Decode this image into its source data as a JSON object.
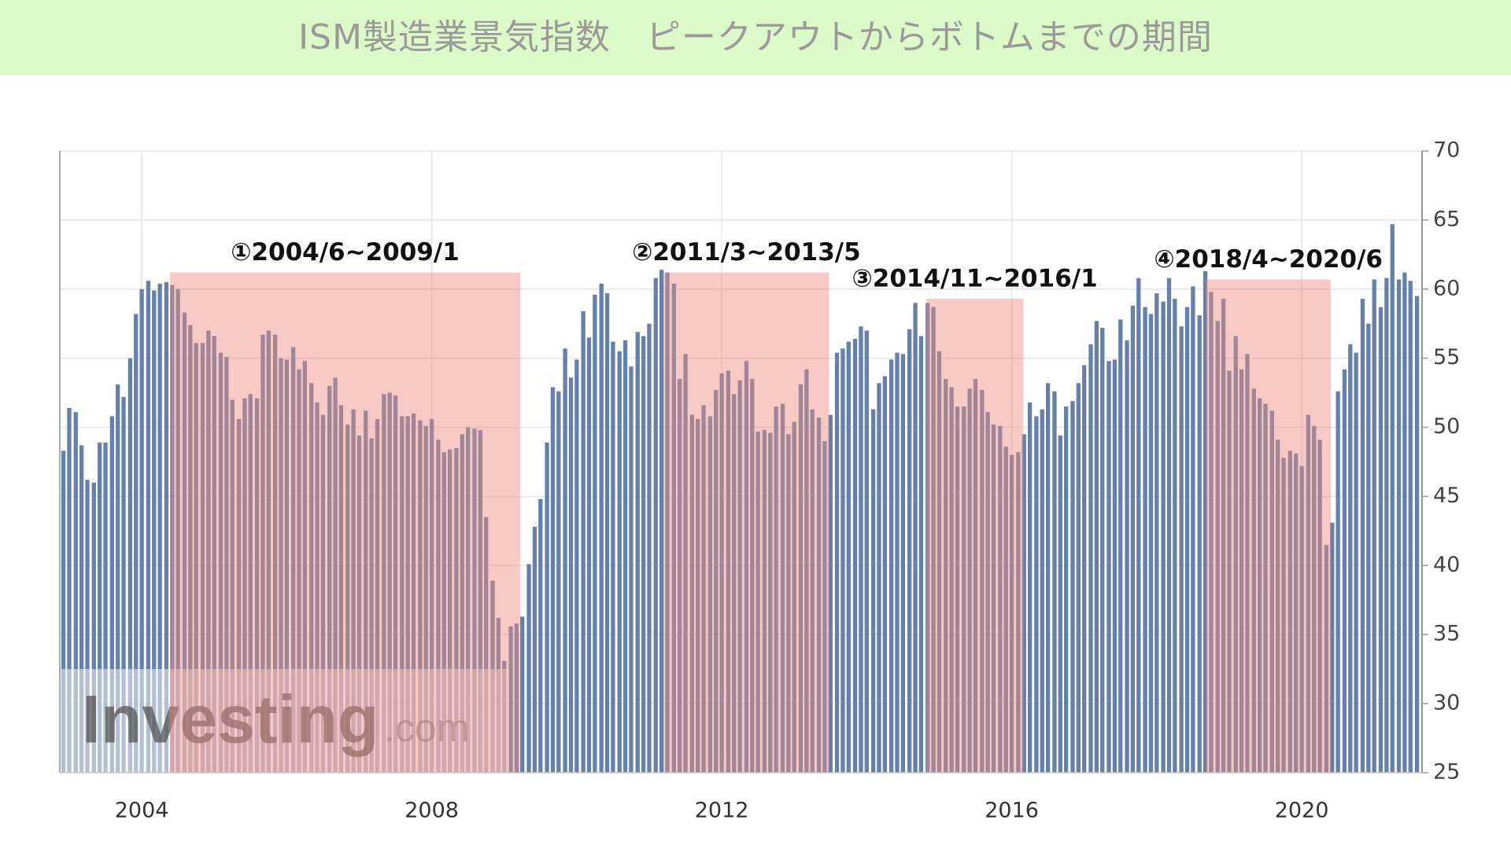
{
  "chart_data": {
    "type": "bar",
    "title": "ISM製造業景気指数　ピークアウトからボトムまでの期間",
    "x": [
      2002.92,
      2003.0,
      2003.09,
      2003.17,
      2003.25,
      2003.34,
      2003.42,
      2003.5,
      2003.59,
      2003.67,
      2003.75,
      2003.84,
      2003.92,
      2004.0,
      2004.09,
      2004.17,
      2004.25,
      2004.34,
      2004.42,
      2004.5,
      2004.59,
      2004.67,
      2004.75,
      2004.84,
      2004.92,
      2005.0,
      2005.09,
      2005.17,
      2005.25,
      2005.34,
      2005.42,
      2005.5,
      2005.59,
      2005.67,
      2005.75,
      2005.84,
      2005.92,
      2006.0,
      2006.09,
      2006.17,
      2006.25,
      2006.34,
      2006.42,
      2006.5,
      2006.59,
      2006.67,
      2006.75,
      2006.84,
      2006.92,
      2007.0,
      2007.09,
      2007.17,
      2007.25,
      2007.34,
      2007.42,
      2007.5,
      2007.59,
      2007.67,
      2007.75,
      2007.84,
      2007.92,
      2008.0,
      2008.09,
      2008.17,
      2008.25,
      2008.34,
      2008.42,
      2008.5,
      2008.59,
      2008.67,
      2008.75,
      2008.84,
      2008.92,
      2009.0,
      2009.09,
      2009.17,
      2009.25,
      2009.34,
      2009.42,
      2009.5,
      2009.59,
      2009.67,
      2009.75,
      2009.84,
      2009.92,
      2010.0,
      2010.09,
      2010.17,
      2010.25,
      2010.34,
      2010.42,
      2010.5,
      2010.59,
      2010.67,
      2010.75,
      2010.84,
      2010.92,
      2011.0,
      2011.09,
      2011.17,
      2011.25,
      2011.34,
      2011.42,
      2011.5,
      2011.59,
      2011.67,
      2011.75,
      2011.84,
      2011.92,
      2012.0,
      2012.09,
      2012.17,
      2012.25,
      2012.34,
      2012.42,
      2012.5,
      2012.59,
      2012.67,
      2012.75,
      2012.84,
      2012.92,
      2013.0,
      2013.09,
      2013.17,
      2013.25,
      2013.34,
      2013.42,
      2013.5,
      2013.59,
      2013.67,
      2013.75,
      2013.84,
      2013.92,
      2014.0,
      2014.09,
      2014.17,
      2014.25,
      2014.34,
      2014.42,
      2014.5,
      2014.59,
      2014.67,
      2014.75,
      2014.84,
      2014.92,
      2015.0,
      2015.09,
      2015.17,
      2015.25,
      2015.34,
      2015.42,
      2015.5,
      2015.59,
      2015.67,
      2015.75,
      2015.84,
      2015.92,
      2016.0,
      2016.09,
      2016.17,
      2016.25,
      2016.34,
      2016.42,
      2016.5,
      2016.59,
      2016.67,
      2016.75,
      2016.84,
      2016.92,
      2017.0,
      2017.09,
      2017.17,
      2017.25,
      2017.34,
      2017.42,
      2017.5,
      2017.59,
      2017.67,
      2017.75,
      2017.84,
      2017.92,
      2018.0,
      2018.09,
      2018.17,
      2018.25,
      2018.34,
      2018.42,
      2018.5,
      2018.59,
      2018.67,
      2018.75,
      2018.84,
      2018.92,
      2019.0,
      2019.09,
      2019.17,
      2019.25,
      2019.34,
      2019.42,
      2019.5,
      2019.59,
      2019.67,
      2019.75,
      2019.84,
      2019.92,
      2020.0,
      2020.09,
      2020.17,
      2020.25,
      2020.34,
      2020.42,
      2020.5,
      2020.59,
      2020.67,
      2020.75,
      2020.84,
      2020.92,
      2021.0,
      2021.09,
      2021.17,
      2021.25,
      2021.34,
      2021.42,
      2021.5,
      2021.59
    ],
    "values": [
      48.3,
      51.4,
      51.1,
      48.7,
      46.2,
      46.0,
      48.9,
      48.9,
      50.8,
      53.1,
      52.2,
      55.0,
      58.2,
      60.0,
      60.6,
      59.9,
      60.4,
      60.5,
      60.3,
      60.0,
      58.3,
      57.4,
      56.1,
      56.1,
      57.0,
      56.6,
      55.4,
      55.1,
      52.0,
      50.6,
      52.1,
      52.4,
      52.1,
      56.7,
      57.0,
      56.7,
      55.0,
      54.9,
      55.8,
      54.2,
      54.8,
      53.2,
      51.8,
      50.9,
      53.0,
      53.6,
      51.6,
      50.2,
      51.3,
      49.4,
      51.2,
      49.2,
      50.6,
      52.4,
      52.5,
      52.3,
      50.8,
      50.8,
      51.0,
      50.5,
      50.1,
      50.6,
      49.1,
      48.2,
      48.4,
      48.5,
      49.5,
      50.0,
      49.9,
      49.8,
      43.5,
      38.9,
      36.2,
      33.1,
      35.6,
      35.8,
      36.3,
      40.1,
      42.8,
      44.8,
      48.9,
      52.9,
      52.6,
      55.7,
      53.6,
      54.9,
      58.4,
      56.5,
      59.6,
      60.4,
      59.7,
      56.2,
      55.5,
      56.3,
      54.4,
      56.9,
      56.6,
      57.5,
      60.8,
      61.4,
      61.2,
      60.4,
      53.5,
      55.3,
      50.9,
      50.6,
      51.6,
      50.8,
      52.7,
      53.9,
      54.1,
      52.4,
      53.4,
      54.8,
      53.5,
      49.7,
      49.8,
      49.6,
      51.5,
      51.7,
      49.5,
      50.4,
      53.1,
      54.2,
      51.3,
      50.7,
      49.0,
      50.9,
      55.4,
      55.7,
      56.2,
      56.4,
      57.3,
      57.0,
      51.3,
      53.2,
      53.7,
      54.9,
      55.4,
      55.3,
      57.1,
      59.0,
      56.6,
      59.0,
      58.7,
      55.5,
      53.5,
      52.9,
      51.5,
      51.5,
      52.8,
      53.5,
      52.7,
      51.1,
      50.2,
      50.1,
      48.6,
      48.0,
      48.2,
      49.5,
      51.8,
      50.8,
      51.3,
      53.2,
      52.6,
      49.4,
      51.5,
      51.9,
      53.2,
      54.5,
      56.0,
      57.7,
      57.2,
      54.8,
      54.9,
      57.8,
      56.3,
      58.8,
      60.8,
      58.7,
      58.2,
      59.7,
      59.1,
      60.8,
      59.3,
      57.3,
      58.7,
      60.2,
      58.1,
      61.3,
      59.8,
      57.7,
      59.3,
      54.1,
      56.6,
      54.2,
      55.3,
      52.8,
      52.1,
      51.7,
      51.2,
      49.1,
      47.8,
      48.3,
      48.1,
      47.2,
      50.9,
      50.1,
      49.1,
      41.5,
      43.1,
      52.6,
      54.2,
      56.0,
      55.4,
      59.3,
      57.5,
      60.7,
      58.7,
      60.8,
      64.7,
      60.7,
      61.2,
      60.6,
      59.5
    ],
    "color": "#6581ab",
    "xlim": [
      2002.87,
      2021.66
    ],
    "xticks": [
      2004,
      2008,
      2012,
      2016,
      2020
    ],
    "ylim": [
      25,
      70
    ],
    "yticks": [
      25,
      30,
      35,
      40,
      45,
      50,
      55,
      60,
      65,
      70
    ],
    "grid": true,
    "regions": [
      {
        "label": "①2004/6~2009/1",
        "x": [
          2004.39,
          2009.22
        ],
        "top": 61.2
      },
      {
        "label": "②2011/3~2013/5",
        "x": [
          2011.2,
          2013.48
        ],
        "top": 61.2
      },
      {
        "label": "③2014/11~2016/1",
        "x": [
          2014.82,
          2016.16
        ],
        "top": 59.3
      },
      {
        "label": "④2018/4~2020/6",
        "x": [
          2018.68,
          2020.4
        ],
        "top": 60.7
      }
    ],
    "region_color": "#f08a80",
    "watermark": [
      "Investing",
      ".com"
    ]
  }
}
